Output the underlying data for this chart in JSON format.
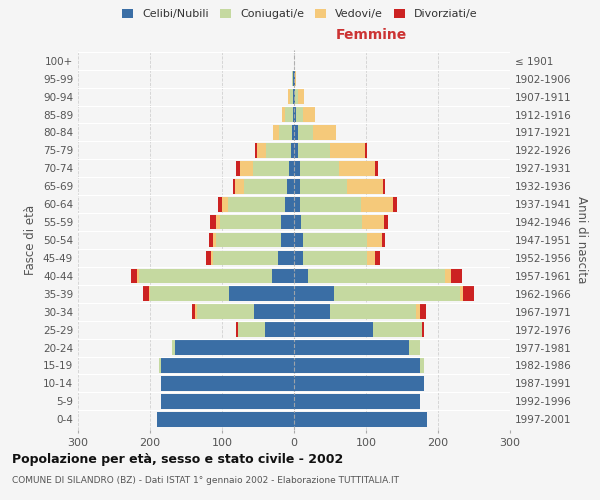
{
  "age_groups": [
    "0-4",
    "5-9",
    "10-14",
    "15-19",
    "20-24",
    "25-29",
    "30-34",
    "35-39",
    "40-44",
    "45-49",
    "50-54",
    "55-59",
    "60-64",
    "65-69",
    "70-74",
    "75-79",
    "80-84",
    "85-89",
    "90-94",
    "95-99",
    "100+"
  ],
  "birth_years": [
    "1997-2001",
    "1992-1996",
    "1987-1991",
    "1982-1986",
    "1977-1981",
    "1972-1976",
    "1967-1971",
    "1962-1966",
    "1957-1961",
    "1952-1956",
    "1947-1951",
    "1942-1946",
    "1937-1941",
    "1932-1936",
    "1927-1931",
    "1922-1926",
    "1917-1921",
    "1912-1916",
    "1907-1911",
    "1902-1906",
    "≤ 1901"
  ],
  "male": {
    "celibi": [
      190,
      185,
      185,
      185,
      165,
      40,
      55,
      90,
      30,
      22,
      18,
      18,
      12,
      10,
      7,
      4,
      3,
      2,
      1,
      1,
      0
    ],
    "coniugati": [
      0,
      0,
      0,
      3,
      5,
      38,
      80,
      110,
      185,
      90,
      90,
      85,
      80,
      60,
      50,
      35,
      18,
      10,
      5,
      2,
      0
    ],
    "vedovi": [
      0,
      0,
      0,
      0,
      0,
      0,
      2,
      2,
      3,
      3,
      5,
      5,
      8,
      12,
      18,
      12,
      8,
      5,
      2,
      0,
      0
    ],
    "divorziati": [
      0,
      0,
      0,
      0,
      0,
      3,
      5,
      8,
      8,
      7,
      5,
      8,
      5,
      3,
      5,
      3,
      0,
      0,
      0,
      0,
      0
    ]
  },
  "female": {
    "nubili": [
      185,
      175,
      180,
      175,
      160,
      110,
      50,
      55,
      20,
      12,
      12,
      10,
      8,
      8,
      8,
      5,
      5,
      3,
      2,
      1,
      0
    ],
    "coniugate": [
      0,
      0,
      0,
      5,
      15,
      68,
      120,
      175,
      190,
      90,
      90,
      85,
      85,
      65,
      55,
      45,
      22,
      10,
      4,
      1,
      0
    ],
    "vedove": [
      0,
      0,
      0,
      0,
      0,
      0,
      5,
      5,
      8,
      10,
      20,
      30,
      45,
      50,
      50,
      48,
      32,
      16,
      8,
      1,
      0
    ],
    "divorziate": [
      0,
      0,
      0,
      0,
      0,
      3,
      8,
      15,
      15,
      8,
      5,
      5,
      5,
      3,
      3,
      3,
      0,
      0,
      0,
      0,
      0
    ]
  },
  "colors": {
    "celibi_nubili": "#3a6ea5",
    "coniugati": "#c5d9a0",
    "vedovi": "#f5c97a",
    "divorziati": "#cc2222"
  },
  "xlim": 300,
  "title": "Popolazione per età, sesso e stato civile - 2002",
  "subtitle": "COMUNE DI SILANDRO (BZ) - Dati ISTAT 1° gennaio 2002 - Elaborazione TUTTITALIA.IT",
  "xlabel_right": "Femmine",
  "ylabel_left": "Fasce di età",
  "ylabel_right": "Anni di nascita",
  "legend_labels": [
    "Celibi/Nubili",
    "Coniugati/e",
    "Vedovi/e",
    "Divorziati/e"
  ],
  "bg_color": "#f5f5f5",
  "grid_color": "#cccccc"
}
